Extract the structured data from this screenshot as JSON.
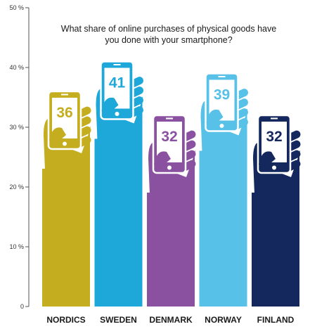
{
  "chart_data": {
    "type": "bar",
    "title_lines": [
      "What share of online purchases of physical goods have",
      "you done with your smartphone?"
    ],
    "xlabel": "",
    "ylabel": "",
    "ylim": [
      0,
      50
    ],
    "y_ticks": [
      {
        "value": 0,
        "label": "0"
      },
      {
        "value": 10,
        "label": "10 %"
      },
      {
        "value": 20,
        "label": "20 %"
      },
      {
        "value": 30,
        "label": "30 %"
      },
      {
        "value": 40,
        "label": "40 %"
      },
      {
        "value": 50,
        "label": "50 %"
      }
    ],
    "grid": false,
    "legend": "none",
    "categories": [
      "NORDICS",
      "SWEDEN",
      "DENMARK",
      "NORWAY",
      "FINLAND"
    ],
    "values": [
      36,
      41,
      32,
      39,
      32
    ],
    "value_labels": [
      "36",
      "41",
      "32",
      "39",
      "32"
    ],
    "colors": [
      "#c4ad1e",
      "#1ea7d9",
      "#8a51a0",
      "#57c1e8",
      "#14285e"
    ],
    "phone_screen_color": "#ffffff",
    "axis_color": "#555555"
  }
}
